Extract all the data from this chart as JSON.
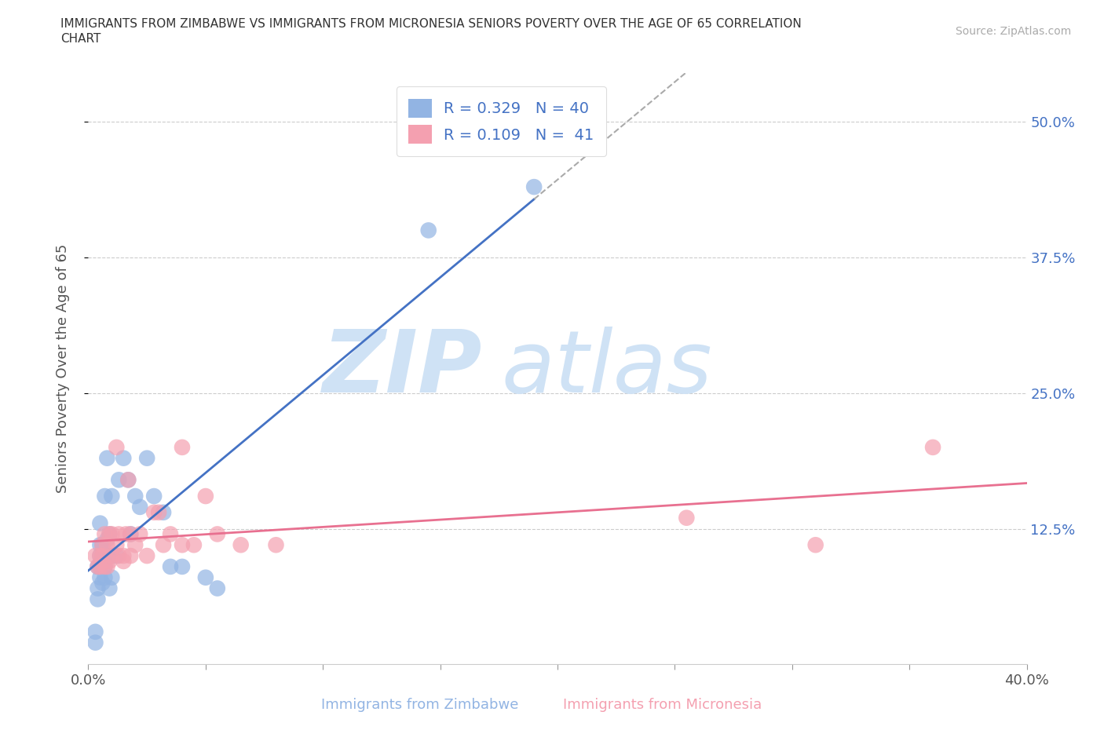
{
  "title": "IMMIGRANTS FROM ZIMBABWE VS IMMIGRANTS FROM MICRONESIA SENIORS POVERTY OVER THE AGE OF 65 CORRELATION\nCHART",
  "source": "Source: ZipAtlas.com",
  "ylabel": "Seniors Poverty Over the Age of 65",
  "xlabel_zimbabwe": "Immigrants from Zimbabwe",
  "xlabel_micronesia": "Immigrants from Micronesia",
  "xmin": 0.0,
  "xmax": 0.4,
  "ymin": 0.0,
  "ymax": 0.545,
  "yticks": [
    0.125,
    0.25,
    0.375,
    0.5
  ],
  "ytick_labels": [
    "12.5%",
    "25.0%",
    "37.5%",
    "50.0%"
  ],
  "xticks": [
    0.0,
    0.05,
    0.1,
    0.15,
    0.2,
    0.25,
    0.3,
    0.35,
    0.4
  ],
  "xtick_labels_show": [
    "0.0%",
    "",
    "",
    "",
    "",
    "",
    "",
    "",
    "40.0%"
  ],
  "R_zimbabwe": 0.329,
  "N_zimbabwe": 40,
  "R_micronesia": 0.109,
  "N_micronesia": 41,
  "color_zimbabwe": "#92b4e3",
  "color_micronesia": "#f4a0b0",
  "trendline_color_zimbabwe": "#4472c4",
  "trendline_color_micronesia": "#e87090",
  "watermark_color": "#cfe2f5",
  "zimbabwe_x": [
    0.003,
    0.003,
    0.004,
    0.004,
    0.004,
    0.005,
    0.005,
    0.005,
    0.005,
    0.005,
    0.006,
    0.006,
    0.006,
    0.007,
    0.007,
    0.007,
    0.008,
    0.008,
    0.008,
    0.009,
    0.009,
    0.01,
    0.01,
    0.01,
    0.012,
    0.013,
    0.015,
    0.017,
    0.018,
    0.02,
    0.022,
    0.025,
    0.028,
    0.032,
    0.035,
    0.04,
    0.05,
    0.055,
    0.145,
    0.19
  ],
  "zimbabwe_y": [
    0.02,
    0.03,
    0.06,
    0.07,
    0.09,
    0.08,
    0.09,
    0.1,
    0.11,
    0.13,
    0.075,
    0.1,
    0.11,
    0.08,
    0.09,
    0.155,
    0.1,
    0.115,
    0.19,
    0.07,
    0.12,
    0.08,
    0.1,
    0.155,
    0.1,
    0.17,
    0.19,
    0.17,
    0.12,
    0.155,
    0.145,
    0.19,
    0.155,
    0.14,
    0.09,
    0.09,
    0.08,
    0.07,
    0.4,
    0.44
  ],
  "micronesia_x": [
    0.003,
    0.004,
    0.005,
    0.005,
    0.006,
    0.006,
    0.007,
    0.007,
    0.008,
    0.008,
    0.009,
    0.009,
    0.01,
    0.01,
    0.012,
    0.012,
    0.013,
    0.013,
    0.015,
    0.015,
    0.016,
    0.017,
    0.018,
    0.018,
    0.02,
    0.022,
    0.025,
    0.028,
    0.03,
    0.032,
    0.035,
    0.04,
    0.04,
    0.045,
    0.05,
    0.055,
    0.065,
    0.08,
    0.255,
    0.31,
    0.36
  ],
  "micronesia_y": [
    0.1,
    0.09,
    0.09,
    0.1,
    0.1,
    0.11,
    0.09,
    0.12,
    0.09,
    0.11,
    0.095,
    0.12,
    0.1,
    0.12,
    0.11,
    0.2,
    0.1,
    0.12,
    0.095,
    0.1,
    0.12,
    0.17,
    0.1,
    0.12,
    0.11,
    0.12,
    0.1,
    0.14,
    0.14,
    0.11,
    0.12,
    0.11,
    0.2,
    0.11,
    0.155,
    0.12,
    0.11,
    0.11,
    0.135,
    0.11,
    0.2
  ]
}
